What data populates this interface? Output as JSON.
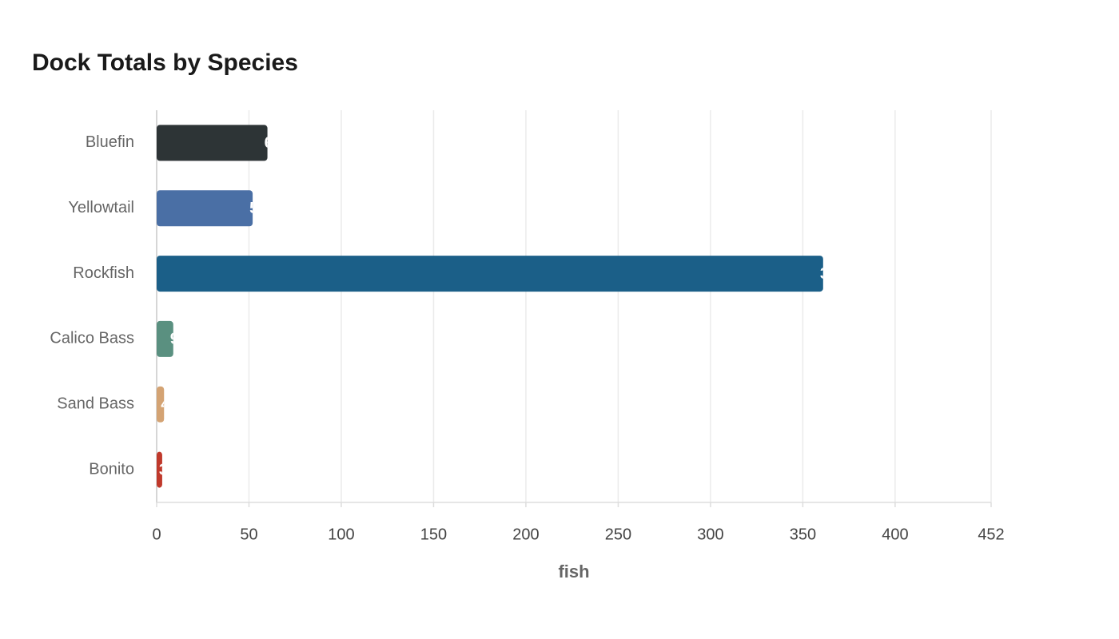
{
  "chart_data": {
    "type": "bar",
    "orientation": "horizontal",
    "title": "Dock Totals by Species",
    "x_label": "fish",
    "categories": [
      "Bluefin",
      "Yellowtail",
      "Rockfish",
      "Calico Bass",
      "Sand Bass",
      "Bonito"
    ],
    "values": [
      60,
      52,
      361,
      9,
      4,
      3
    ],
    "colors": [
      "#2d3436",
      "#4a6fa5",
      "#1b5f88",
      "#5a9080",
      "#d4a373",
      "#c0392b"
    ],
    "xlim": [
      0,
      452
    ],
    "xticks": [
      0,
      50,
      100,
      150,
      200,
      250,
      300,
      350,
      400,
      452
    ],
    "grid": true
  }
}
